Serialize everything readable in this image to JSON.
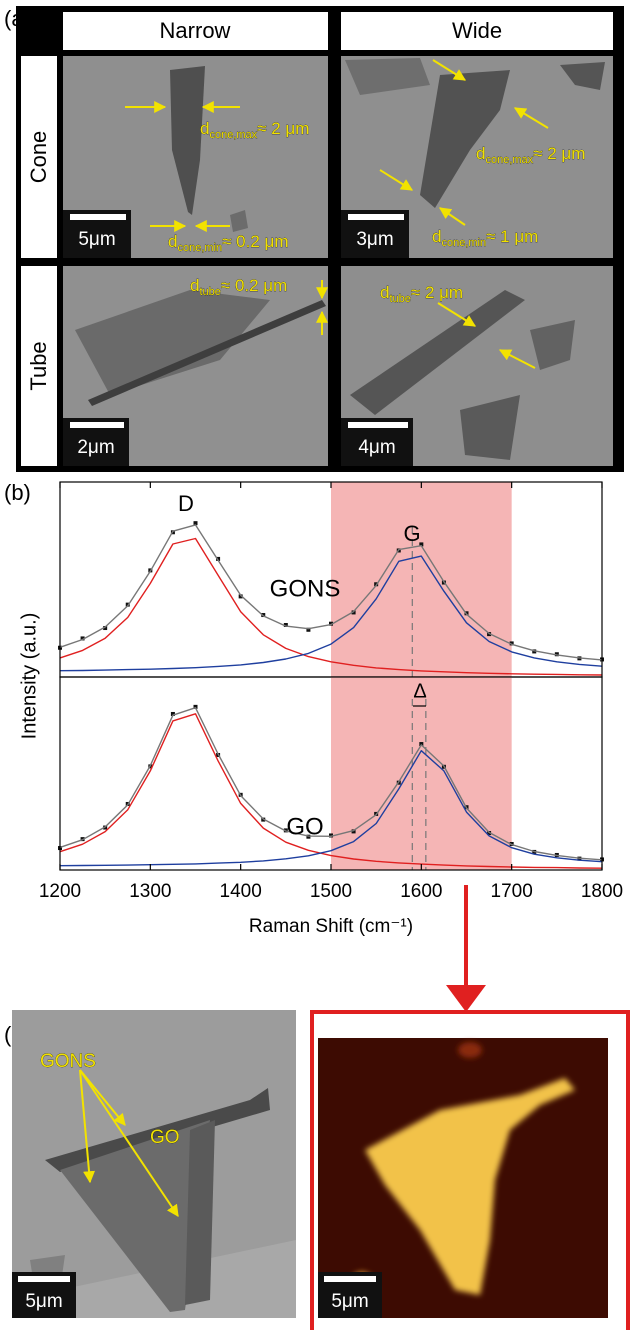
{
  "panel_a": {
    "label": "(a)",
    "columns": [
      "Narrow",
      "Wide"
    ],
    "rows": [
      "Cone",
      "Tube"
    ],
    "images": [
      {
        "scale_bar": "5μm",
        "annotations": [
          {
            "symbol": "d",
            "sub": "cone,max",
            "text": "≈ 2 μm"
          },
          {
            "symbol": "d",
            "sub": "cone,min",
            "text": "≈ 0.2 μm"
          }
        ]
      },
      {
        "scale_bar": "3μm",
        "annotations": [
          {
            "symbol": "d",
            "sub": "cone,max",
            "text": "≈ 2 μm"
          },
          {
            "symbol": "d",
            "sub": "cone,min",
            "text": "≈ 1 μm"
          }
        ]
      },
      {
        "scale_bar": "2μm",
        "annotations": [
          {
            "symbol": "d",
            "sub": "tube",
            "text": "≈ 0.2 μm"
          }
        ]
      },
      {
        "scale_bar": "4μm",
        "annotations": [
          {
            "symbol": "d",
            "sub": "tube",
            "text": "≈ 2 μm"
          }
        ]
      }
    ]
  },
  "panel_b": {
    "label": "(b)"
  },
  "chart_data": [
    {
      "type": "line",
      "ylabel": "Intensity (a.u.)",
      "annotation": "GONS",
      "peak_labels": [
        "D",
        "G"
      ],
      "x": [
        1200,
        1225,
        1250,
        1275,
        1300,
        1325,
        1350,
        1375,
        1400,
        1425,
        1450,
        1475,
        1500,
        1525,
        1550,
        1575,
        1600,
        1625,
        1650,
        1675,
        1700,
        1725,
        1750,
        1775,
        1800
      ],
      "xlim": [
        1200,
        1800
      ],
      "ylim": [
        0,
        0.9
      ],
      "highlight": [
        1500,
        1700
      ],
      "highlight_color": "#f5b5b5",
      "vlines": [
        1590
      ],
      "series": [
        {
          "style": "markers",
          "color": "#111111",
          "values": [
            0.135,
            0.178,
            0.226,
            0.334,
            0.492,
            0.668,
            0.71,
            0.545,
            0.372,
            0.286,
            0.24,
            0.218,
            0.246,
            0.298,
            0.428,
            0.584,
            0.612,
            0.436,
            0.294,
            0.198,
            0.155,
            0.118,
            0.105,
            0.086,
            0.081
          ]
        },
        {
          "style": "line",
          "color": "#777777",
          "values": [
            0.137,
            0.173,
            0.231,
            0.329,
            0.488,
            0.673,
            0.702,
            0.539,
            0.377,
            0.282,
            0.235,
            0.223,
            0.242,
            0.302,
            0.423,
            0.588,
            0.606,
            0.44,
            0.29,
            0.201,
            0.151,
            0.121,
            0.102,
            0.088,
            0.079
          ]
        },
        {
          "style": "line",
          "color": "#e02020",
          "values": [
            0.088,
            0.123,
            0.179,
            0.275,
            0.432,
            0.614,
            0.639,
            0.47,
            0.301,
            0.195,
            0.132,
            0.094,
            0.07,
            0.054,
            0.042,
            0.034,
            0.028,
            0.024,
            0.02,
            0.017,
            0.015,
            0.013,
            0.012,
            0.01,
            0.009
          ]
        },
        {
          "style": "line",
          "color": "#1f3f9f",
          "values": [
            0.029,
            0.03,
            0.032,
            0.034,
            0.036,
            0.039,
            0.043,
            0.049,
            0.056,
            0.067,
            0.083,
            0.109,
            0.152,
            0.228,
            0.361,
            0.534,
            0.558,
            0.396,
            0.25,
            0.164,
            0.116,
            0.088,
            0.07,
            0.058,
            0.05
          ]
        }
      ]
    },
    {
      "type": "line",
      "xlabel": "Raman Shift (cm⁻¹)",
      "annotation": "GO",
      "delta_label": "Δ",
      "x": [
        1200,
        1225,
        1250,
        1275,
        1300,
        1325,
        1350,
        1375,
        1400,
        1425,
        1450,
        1475,
        1500,
        1525,
        1550,
        1575,
        1600,
        1625,
        1650,
        1675,
        1700,
        1725,
        1750,
        1775,
        1800
      ],
      "xlim": [
        1200,
        1800
      ],
      "xticks": [
        1200,
        1300,
        1400,
        1500,
        1600,
        1700,
        1800
      ],
      "ylim": [
        0,
        0.95
      ],
      "highlight": [
        1500,
        1700
      ],
      "highlight_color": "#f5b5b5",
      "vlines": [
        1590,
        1605
      ],
      "series": [
        {
          "style": "markers",
          "color": "#111111",
          "values": [
            0.108,
            0.152,
            0.209,
            0.325,
            0.51,
            0.768,
            0.803,
            0.566,
            0.37,
            0.248,
            0.195,
            0.164,
            0.17,
            0.19,
            0.276,
            0.43,
            0.62,
            0.508,
            0.309,
            0.182,
            0.128,
            0.089,
            0.074,
            0.056,
            0.052
          ]
        },
        {
          "style": "line",
          "color": "#777777",
          "values": [
            0.111,
            0.149,
            0.212,
            0.321,
            0.514,
            0.762,
            0.799,
            0.571,
            0.366,
            0.251,
            0.192,
            0.167,
            0.166,
            0.194,
            0.272,
            0.434,
            0.616,
            0.512,
            0.305,
            0.185,
            0.125,
            0.091,
            0.072,
            0.058,
            0.05
          ]
        },
        {
          "style": "line",
          "color": "#e02020",
          "values": [
            0.09,
            0.127,
            0.189,
            0.297,
            0.488,
            0.734,
            0.769,
            0.537,
            0.328,
            0.206,
            0.137,
            0.097,
            0.071,
            0.054,
            0.043,
            0.035,
            0.029,
            0.024,
            0.02,
            0.017,
            0.015,
            0.013,
            0.012,
            0.01,
            0.009
          ]
        },
        {
          "style": "line",
          "color": "#1f3f9f",
          "values": [
            0.021,
            0.022,
            0.023,
            0.024,
            0.026,
            0.028,
            0.03,
            0.034,
            0.038,
            0.045,
            0.055,
            0.07,
            0.095,
            0.14,
            0.229,
            0.399,
            0.587,
            0.488,
            0.285,
            0.168,
            0.11,
            0.078,
            0.06,
            0.048,
            0.041
          ]
        }
      ]
    }
  ],
  "panel_c": {
    "label": "(c)",
    "optical": {
      "labels": [
        "GONS",
        "GO"
      ],
      "scale_bar": "5μm"
    },
    "raman_map": {
      "scale_bar": "5μm"
    }
  }
}
